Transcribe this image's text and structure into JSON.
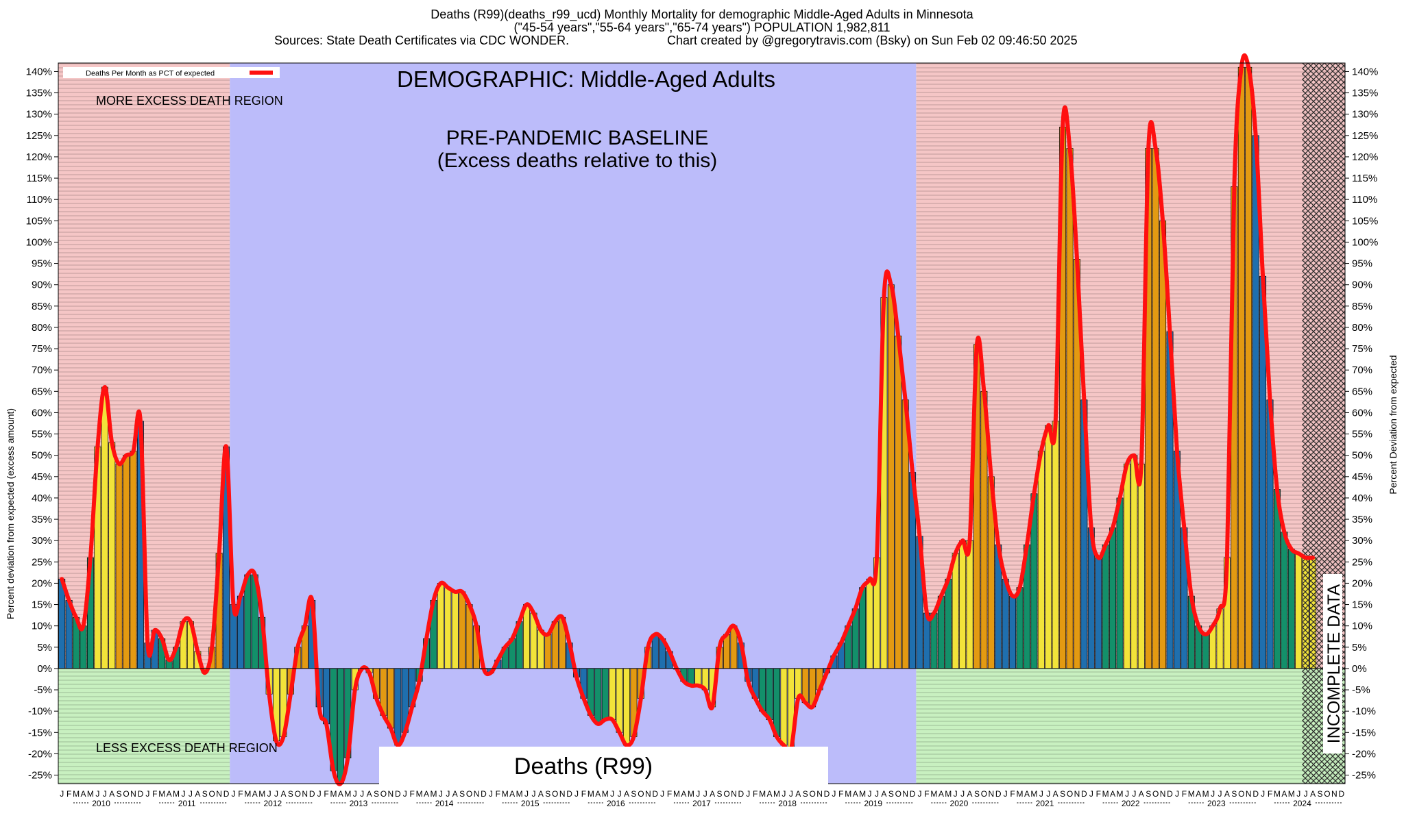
{
  "header": {
    "title_line1": "Deaths (R99)(deaths_r99_ucd) Monthly Mortality for demographic Middle-Aged Adults in Minnesota",
    "title_line2": "(\"45-54 years\",\"55-64 years\",\"65-74 years\") POPULATION 1,982,811",
    "sources": "Sources: State Death Certificates via CDC WONDER.",
    "credit": "Chart created by @gregorytravis.com (Bsky) on Sun Feb 02 09:46:50 2025"
  },
  "annotations": {
    "demographic": "DEMOGRAPHIC: Middle-Aged Adults",
    "baseline_line1": "PRE-PANDEMIC BASELINE",
    "baseline_line2": "(Excess deaths relative to this)",
    "more_region": "MORE EXCESS DEATH REGION",
    "less_region": "LESS EXCESS DEATH REGION",
    "incomplete": "INCOMPLETE DATA",
    "cause_box": "Deaths (R99)"
  },
  "colors": {
    "excess_region": "#f5c6c6",
    "deficit_region": "#c8f0c0",
    "baseline_region": "#bcbcfa",
    "winter_bar": "#1f6fae",
    "spring_bar": "#13906a",
    "summer_bar": "#f2e33a",
    "fall_bar": "#e39a12",
    "trend_line": "#ff1010"
  },
  "chart_data": {
    "type": "bar",
    "title": "",
    "xlabel": "",
    "ylabel": "Percent deviation from expected (excess amount)",
    "ylabel_right": "Percent Deviation from expected",
    "legend": {
      "label": "Deaths Per Month as PCT of expected",
      "placement": "top-left"
    },
    "ylim": [
      -27,
      142
    ],
    "y_ticks": [
      -25,
      -20,
      -15,
      -10,
      -5,
      0,
      5,
      10,
      15,
      20,
      25,
      30,
      35,
      40,
      45,
      50,
      55,
      60,
      65,
      70,
      75,
      80,
      85,
      90,
      95,
      100,
      105,
      110,
      115,
      120,
      125,
      130,
      135,
      140
    ],
    "y_tick_format": "%",
    "month_letters": [
      "J",
      "F",
      "M",
      "A",
      "M",
      "J",
      "J",
      "A",
      "S",
      "O",
      "N",
      "D"
    ],
    "years": [
      "2010",
      "2011",
      "2012",
      "2013",
      "2014",
      "2015",
      "2016",
      "2017",
      "2018",
      "2019",
      "2020",
      "2021",
      "2022",
      "2023",
      "2024"
    ],
    "baseline_years": [
      "2012",
      "2013",
      "2014",
      "2015",
      "2016",
      "2017",
      "2018",
      "2019"
    ],
    "incomplete_from": "2024-07",
    "series": [
      {
        "name": "Deaths Per Month as PCT of expected",
        "start": "2010-01",
        "values": [
          21,
          16,
          12,
          10,
          26,
          52,
          66,
          53,
          48,
          50,
          51,
          58,
          6,
          9,
          7,
          2,
          5,
          11,
          11,
          4,
          -1,
          5,
          27,
          52,
          15,
          17,
          22,
          22,
          12,
          -6,
          -17,
          -16,
          -6,
          5,
          10,
          16,
          -9,
          -13,
          -24,
          -27,
          -21,
          -5,
          0,
          -1,
          -7,
          -11,
          -14,
          -18,
          -15,
          -9,
          -3,
          7,
          16,
          20,
          19,
          18,
          18,
          15,
          10,
          0,
          -1,
          2,
          5,
          7,
          11,
          15,
          13,
          9,
          8,
          11,
          12,
          6,
          -2,
          -7,
          -11,
          -13,
          -12,
          -12,
          -15,
          -18,
          -16,
          -7,
          5,
          8,
          7,
          4,
          0,
          -3,
          -4,
          -4,
          -5,
          -9,
          5,
          8,
          10,
          6,
          -3,
          -7,
          -10,
          -12,
          -16,
          -18,
          -19,
          -7,
          -8,
          -9,
          -5,
          -1,
          3,
          6,
          10,
          14,
          19,
          21,
          26,
          87,
          90,
          78,
          63,
          46,
          31,
          13,
          13,
          17,
          21,
          27,
          30,
          30,
          76,
          65,
          45,
          29,
          21,
          17,
          19,
          29,
          41,
          51,
          57,
          58,
          127,
          122,
          96,
          63,
          33,
          26,
          29,
          33,
          40,
          48,
          50,
          48,
          122,
          122,
          105,
          79,
          51,
          33,
          17,
          10,
          8,
          10,
          14,
          26,
          113,
          141,
          141,
          125,
          92,
          63,
          42,
          32,
          28,
          27,
          26,
          26
        ]
      }
    ]
  }
}
